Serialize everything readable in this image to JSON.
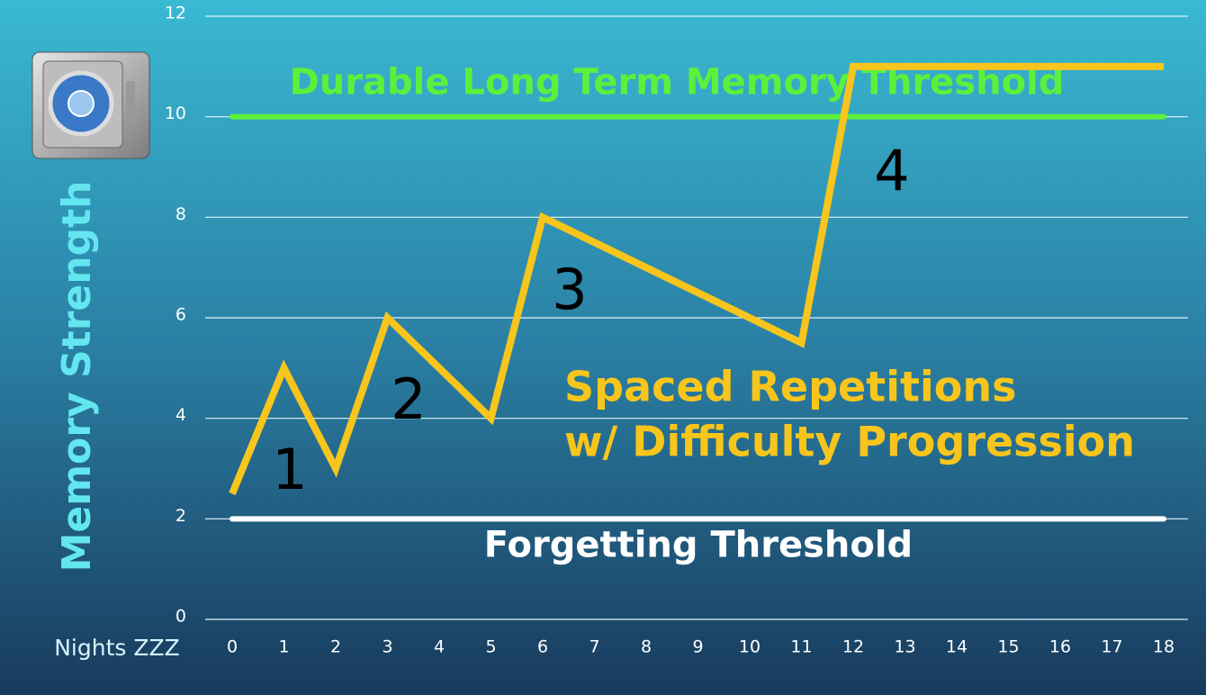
{
  "chart_data": {
    "type": "line",
    "xlabel": "Nights ZZZ",
    "ylabel": "Memory Strength",
    "xlim": [
      0,
      18
    ],
    "xticks": [
      0,
      1,
      2,
      3,
      4,
      5,
      6,
      7,
      8,
      9,
      10,
      11,
      12,
      13,
      14,
      15,
      16,
      17,
      18
    ],
    "ylim": [
      0,
      12
    ],
    "yticks": [
      0,
      2,
      4,
      6,
      8,
      10,
      12
    ],
    "grid": true,
    "series": [
      {
        "name": "Spaced Repetitions",
        "color": "#f7c51c",
        "x": [
          0,
          1,
          2,
          3,
          5,
          6,
          11,
          12,
          18
        ],
        "values": [
          2.5,
          5,
          3,
          6,
          4,
          8,
          5.5,
          11,
          11
        ]
      }
    ],
    "thresholds": [
      {
        "label": "Durable Long Term Memory Threshold",
        "value": 10,
        "color": "#5cf03c"
      },
      {
        "label": "Forgetting Threshold",
        "value": 2,
        "color": "#ffffff"
      }
    ],
    "annotations": [
      "1",
      "2",
      "3",
      "4",
      "Spaced Repetitions",
      "w/ Difficulty Progression"
    ]
  }
}
